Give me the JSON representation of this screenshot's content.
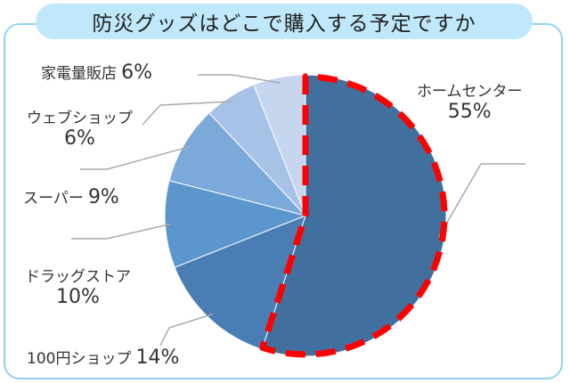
{
  "title": "防災グッズはどこで購入する予定ですか",
  "chart_data": {
    "type": "pie",
    "title": "防災グッズはどこで購入する予定ですか",
    "unit": "%",
    "highlighted_slice": "ホームセンター",
    "slices": [
      {
        "label": "ホームセンター",
        "value": 55,
        "value_label": "55%",
        "color": "#41709f"
      },
      {
        "label": "100円ショップ",
        "value": 14,
        "value_label": "14%",
        "color": "#4a7db4"
      },
      {
        "label": "ドラッグストア",
        "value": 10,
        "value_label": "10%",
        "color": "#5b96cd"
      },
      {
        "label": "スーパー",
        "value": 9,
        "value_label": "9%",
        "color": "#7aa9da"
      },
      {
        "label": "ウェブショップ",
        "value": 6,
        "value_label": "6%",
        "color": "#a6c2e6"
      },
      {
        "label": "家電量販店",
        "value": 6,
        "value_label": "6%",
        "color": "#c6d6ee"
      }
    ],
    "highlight_color": "#ff0000",
    "leader_color": "#aaaaaa"
  }
}
